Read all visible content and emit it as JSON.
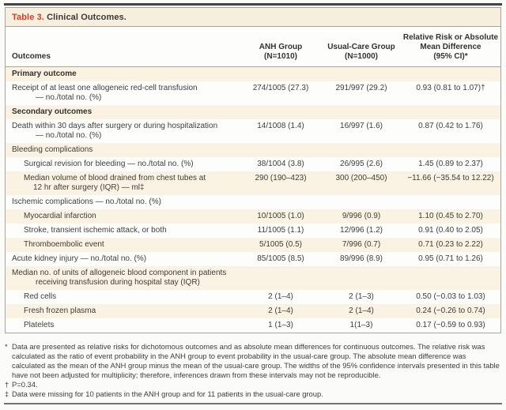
{
  "table": {
    "label": "Table 3.",
    "title": "Clinical Outcomes.",
    "columns": {
      "outcomes": "Outcomes",
      "anh": "ANH Group\n(N=1010)",
      "usual": "Usual-Care Group\n(N=1000)",
      "rr": "Relative Risk or Absolute\nMean Difference\n(95% CI)*"
    },
    "rows": [
      {
        "label": "Primary outcome",
        "section": true,
        "indent": false,
        "anh": "",
        "usual": "",
        "rr": ""
      },
      {
        "label": "Receipt of at least one allogeneic red-cell transfusion\n— no./total no. (%)",
        "section": false,
        "indent": false,
        "anh": "274/1005 (27.3)",
        "usual": "291/997 (29.2)",
        "rr": "0.93 (0.81 to 1.07)†"
      },
      {
        "label": "Secondary outcomes",
        "section": true,
        "indent": false,
        "anh": "",
        "usual": "",
        "rr": ""
      },
      {
        "label": "Death within 30 days after surgery or during hospitalization\n— no./total no. (%)",
        "section": false,
        "indent": false,
        "anh": "14/1008 (1.4)",
        "usual": "16/997 (1.6)",
        "rr": "0.87 (0.42 to 1.76)"
      },
      {
        "label": "Bleeding complications",
        "section": false,
        "indent": false,
        "anh": "",
        "usual": "",
        "rr": ""
      },
      {
        "label": "Surgical revision for bleeding — no./total no. (%)",
        "section": false,
        "indent": true,
        "anh": "38/1004 (3.8)",
        "usual": "26/995 (2.6)",
        "rr": "1.45 (0.89 to 2.37)"
      },
      {
        "label": "Median volume of blood drained from chest tubes at\n12 hr after surgery (IQR) — ml‡",
        "section": false,
        "indent": true,
        "anh": "290 (190–423)",
        "usual": "300 (200–450)",
        "rr": "−11.66 (−35.54 to 12.22)"
      },
      {
        "label": "Ischemic complications — no./total no. (%)",
        "section": false,
        "indent": false,
        "anh": "",
        "usual": "",
        "rr": ""
      },
      {
        "label": "Myocardial infarction",
        "section": false,
        "indent": true,
        "anh": "10/1005 (1.0)",
        "usual": "9/996 (0.9)",
        "rr": "1.10 (0.45 to 2.70)"
      },
      {
        "label": "Stroke, transient ischemic attack, or both",
        "section": false,
        "indent": true,
        "anh": "11/1005 (1.1)",
        "usual": "12/996 (1.2)",
        "rr": "0.91 (0.40 to 2.05)"
      },
      {
        "label": "Thromboembolic event",
        "section": false,
        "indent": true,
        "anh": "5/1005 (0.5)",
        "usual": "7/996 (0.7)",
        "rr": "0.71 (0.23 to 2.22)"
      },
      {
        "label": "Acute kidney injury — no./total no. (%)",
        "section": false,
        "indent": false,
        "anh": "85/1005 (8.5)",
        "usual": "89/996 (8.9)",
        "rr": "0.95 (0.71 to 1.26)"
      },
      {
        "label": "Median no. of units of allogeneic blood component in patients\nreceiving transfusion during hospital stay (IQR)",
        "section": false,
        "indent": false,
        "anh": "",
        "usual": "",
        "rr": ""
      },
      {
        "label": "Red cells",
        "section": false,
        "indent": true,
        "anh": "2 (1–4)",
        "usual": "2 (1–3)",
        "rr": "0.50 (−0.03 to 1.03)"
      },
      {
        "label": "Fresh frozen plasma",
        "section": false,
        "indent": true,
        "anh": "2 (1–4)",
        "usual": "2 (1–4)",
        "rr": "0.24 (−0.26 to 0.74)"
      },
      {
        "label": "Platelets",
        "section": false,
        "indent": true,
        "anh": "1 (1–3)",
        "usual": "1(1–3)",
        "rr": "0.17 (−0.59 to 0.93)"
      }
    ]
  },
  "footnotes": [
    {
      "marker": "*",
      "text": "Data are presented as relative risks for dichotomous outcomes and as absolute mean differences for continuous outcomes. The relative risk was calculated as the ratio of event probability in the ANH group to event probability in the usual-care group. The absolute mean difference was calculated as the mean of the ANH group minus the mean of the usual-care group. The widths of the 95% confidence intervals presented in this table have not been adjusted for multiplicity; therefore, inferences drawn from these intervals may not be reproducible."
    },
    {
      "marker": "†",
      "text": "P=0.34."
    },
    {
      "marker": "‡",
      "text": "Data were missing for 10 patients in the ANH group and for 11 patients in the usual-care group."
    }
  ],
  "colors": {
    "accent_red": "#cf3e2d",
    "row_shade": "#faf2e2",
    "rule_dark": "#44433f",
    "border": "#a9a59d"
  }
}
